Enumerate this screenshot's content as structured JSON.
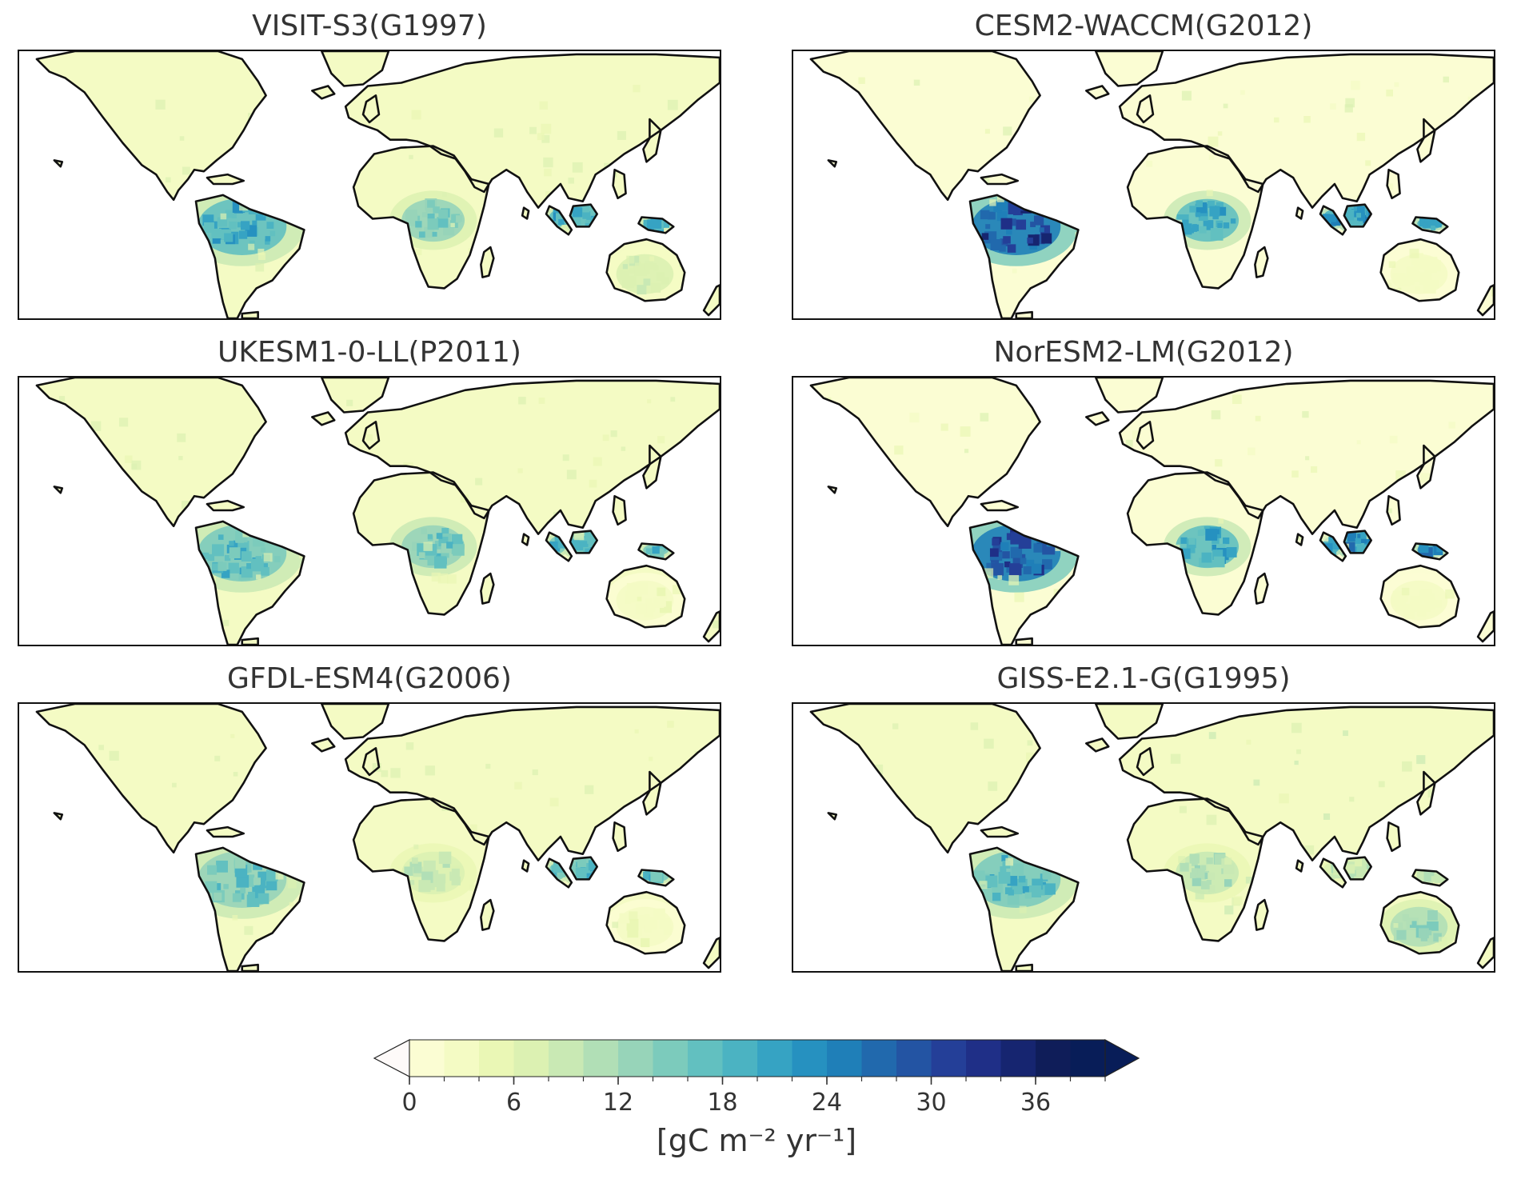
{
  "panels": [
    {
      "title": "VISIT-S3(G1997)",
      "amazon": 22,
      "congo": 16,
      "sea": 22,
      "aus": 8,
      "background": 2
    },
    {
      "title": "CESM2-WACCM(G2012)",
      "amazon": 34,
      "congo": 22,
      "sea": 24,
      "aus": 3,
      "background": 1
    },
    {
      "title": "UKESM1-0-LL(P2011)",
      "amazon": 20,
      "congo": 18,
      "sea": 20,
      "aus": 4,
      "background": 2
    },
    {
      "title": "NorESM2-LM(G2012)",
      "amazon": 32,
      "congo": 22,
      "sea": 26,
      "aus": 3,
      "background": 1
    },
    {
      "title": "GFDL-ESM4(G2006)",
      "amazon": 18,
      "congo": 10,
      "sea": 20,
      "aus": 4,
      "background": 2
    },
    {
      "title": "GISS-E2.1-G(G1995)",
      "amazon": 20,
      "congo": 12,
      "sea": 10,
      "aus": 14,
      "background": 3
    }
  ],
  "colorbar": {
    "ticks": [
      "0",
      "6",
      "12",
      "18",
      "24",
      "30",
      "36"
    ],
    "levels": [
      0,
      2,
      4,
      6,
      8,
      10,
      12,
      14,
      16,
      18,
      20,
      22,
      24,
      26,
      28,
      30,
      32,
      34,
      36,
      38,
      40
    ],
    "colormap": "YlGnBu",
    "colors": [
      "#fbfdd3",
      "#f4fbc4",
      "#eaf7b5",
      "#dcf1b2",
      "#c9e9b4",
      "#b1dfb6",
      "#97d4b9",
      "#7ccbbc",
      "#62c0c0",
      "#4bb3c2",
      "#36a3c3",
      "#2691c0",
      "#1f7fb8",
      "#2169ad",
      "#2354a3",
      "#243f98",
      "#1f2f87",
      "#162570",
      "#0f1d59",
      "#081d58"
    ],
    "under_color": "#fefaf9",
    "over_color": "#081d58",
    "label": "[gC m⁻² yr⁻¹]"
  }
}
